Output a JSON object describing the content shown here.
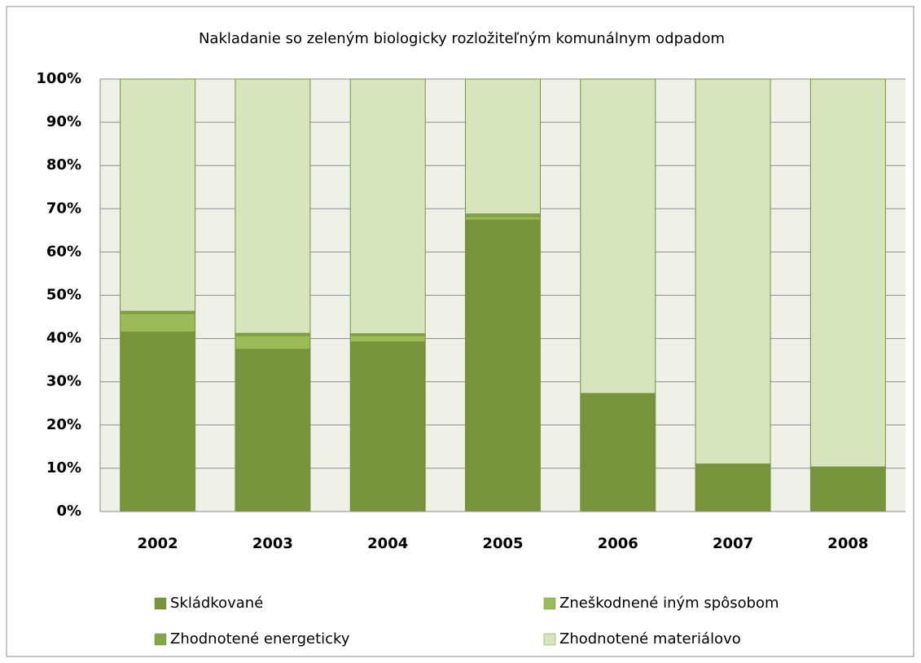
{
  "chart_data": {
    "type": "stacked_bar",
    "title": "Nakladanie so zeleným biologicky rozložiteľným komunálnym odpadom",
    "categories": [
      "2002",
      "2003",
      "2004",
      "2005",
      "2006",
      "2007",
      "2008"
    ],
    "series": [
      {
        "name": "Skládkované",
        "color": "#77933c",
        "values": [
          41.5,
          37.5,
          39.2,
          67.4,
          27.3,
          11,
          10.3
        ]
      },
      {
        "name": "Zneškodnené iným spôsobom",
        "color": "#9bbb59",
        "values": [
          4.3,
          3.2,
          1.5,
          0.8,
          0,
          0,
          0
        ]
      },
      {
        "name": "Zhodnotené energeticky",
        "color": "#86a54a",
        "values": [
          0.5,
          0.5,
          0.4,
          0.6,
          0,
          0,
          0
        ]
      },
      {
        "name": "Zhodnotené materiálovo",
        "color": "#d7e4bd",
        "values": [
          53.7,
          58.8,
          58.9,
          31.2,
          72.7,
          89,
          89.7
        ]
      }
    ],
    "ylim": [
      0,
      100
    ],
    "yticks": [
      {
        "value": 0,
        "label": "0%"
      },
      {
        "value": 10,
        "label": "10%"
      },
      {
        "value": 20,
        "label": "20%"
      },
      {
        "value": 30,
        "label": "30%"
      },
      {
        "value": 40,
        "label": "40%"
      },
      {
        "value": 50,
        "label": "50%"
      },
      {
        "value": 60,
        "label": "60%"
      },
      {
        "value": 70,
        "label": "70%"
      },
      {
        "value": 80,
        "label": "80%"
      },
      {
        "value": 90,
        "label": "90%"
      },
      {
        "value": 100,
        "label": "100%"
      }
    ],
    "grid": true
  }
}
